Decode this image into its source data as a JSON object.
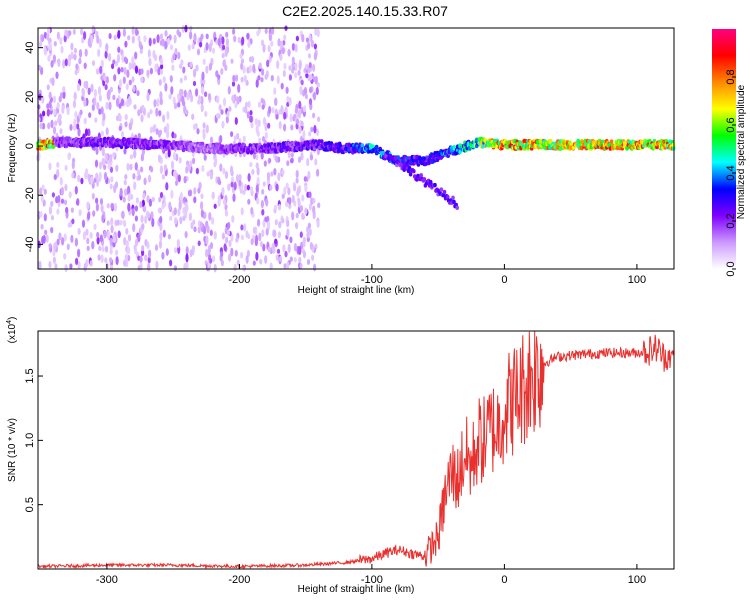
{
  "title": "C2E2.2025.140.15.33.R07",
  "chart_data": [
    {
      "type": "heatmap",
      "xlabel": "Height of straight line (km)",
      "ylabel": "Frequency (Hz)",
      "xlim": [
        -352,
        128
      ],
      "ylim": [
        -50,
        48
      ],
      "x_ticks": [
        -300,
        -200,
        -100,
        0,
        100
      ],
      "y_ticks": [
        -40,
        -20,
        0,
        20,
        40
      ],
      "colorbar": {
        "label": "Normalized spectral amplitude",
        "range": [
          0,
          1
        ],
        "ticks": [
          0.0,
          0.2,
          0.4,
          0.6,
          0.8
        ],
        "colormap": "rainbow",
        "colors": [
          "#ffffff",
          "#cc99ff",
          "#7f00ff",
          "#0000ff",
          "#00ffff",
          "#00ff00",
          "#ffff00",
          "#ff8800",
          "#ff0000",
          "#ff0080"
        ]
      },
      "ridge": [
        {
          "x": -340,
          "f": 1.5,
          "amp": 0.22
        },
        {
          "x": -300,
          "f": 1.5,
          "amp": 0.25
        },
        {
          "x": -260,
          "f": 0.5,
          "amp": 0.22
        },
        {
          "x": -220,
          "f": -1.0,
          "amp": 0.18
        },
        {
          "x": -180,
          "f": -1.0,
          "amp": 0.24
        },
        {
          "x": -140,
          "f": 0.5,
          "amp": 0.28
        },
        {
          "x": -120,
          "f": -1.0,
          "amp": 0.3
        },
        {
          "x": -100,
          "f": -1.0,
          "amp": 0.45
        },
        {
          "x": -80,
          "f": -6.0,
          "amp": 0.35
        },
        {
          "x": -60,
          "f": -6.0,
          "amp": 0.3
        },
        {
          "x": -40,
          "f": -2.0,
          "amp": 0.4
        },
        {
          "x": -20,
          "f": 1.5,
          "amp": 0.6
        },
        {
          "x": 0,
          "f": 0.5,
          "amp": 0.85
        },
        {
          "x": 40,
          "f": 0.5,
          "amp": 0.75
        },
        {
          "x": 80,
          "f": 0.5,
          "amp": 0.8
        },
        {
          "x": 110,
          "f": 0.5,
          "amp": 0.85
        },
        {
          "x": 128,
          "f": 0.5,
          "amp": 0.8
        }
      ],
      "noise_region_x": [
        -352,
        -140
      ]
    },
    {
      "type": "line",
      "xlabel": "Height of straight line (km)",
      "ylabel": "SNR (10 * v/v)",
      "y_multiplier": "(x10",
      "y_multiplier_exp": "4",
      "y_multiplier_close": ")",
      "xlim": [
        -352,
        128
      ],
      "ylim": [
        0,
        1.85
      ],
      "x_ticks": [
        -300,
        -200,
        -100,
        0,
        100
      ],
      "y_ticks": [
        0.5,
        1.0,
        1.5
      ],
      "y_tick_labels": [
        "0.5",
        "1.0",
        "1.5"
      ],
      "line_color": "#e8312e",
      "series": [
        {
          "x": [
            -352,
            -300,
            -250,
            -200,
            -150,
            -120,
            -100,
            -90,
            -80,
            -70,
            -60,
            -50,
            -45,
            -40,
            -35,
            -30,
            -25,
            -20,
            -15,
            -10,
            -5,
            0,
            10,
            20,
            30,
            40,
            60,
            80,
            100,
            110,
            115,
            120,
            128
          ],
          "values": [
            0.02,
            0.03,
            0.03,
            0.02,
            0.03,
            0.05,
            0.08,
            0.12,
            0.15,
            0.12,
            0.1,
            0.25,
            0.55,
            0.75,
            0.7,
            0.9,
            0.8,
            1.0,
            1.0,
            1.1,
            1.1,
            1.25,
            1.35,
            1.5,
            1.6,
            1.65,
            1.67,
            1.68,
            1.68,
            1.7,
            1.72,
            1.65,
            1.67
          ]
        }
      ]
    }
  ]
}
